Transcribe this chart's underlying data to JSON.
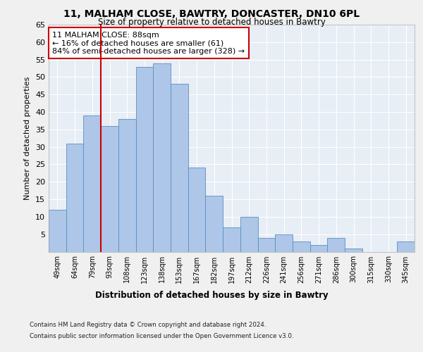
{
  "title_line1": "11, MALHAM CLOSE, BAWTRY, DONCASTER, DN10 6PL",
  "title_line2": "Size of property relative to detached houses in Bawtry",
  "xlabel": "Distribution of detached houses by size in Bawtry",
  "ylabel": "Number of detached properties",
  "categories": [
    "49sqm",
    "64sqm",
    "79sqm",
    "93sqm",
    "108sqm",
    "123sqm",
    "138sqm",
    "153sqm",
    "167sqm",
    "182sqm",
    "197sqm",
    "212sqm",
    "226sqm",
    "241sqm",
    "256sqm",
    "271sqm",
    "286sqm",
    "300sqm",
    "315sqm",
    "330sqm",
    "345sqm"
  ],
  "values": [
    12,
    31,
    39,
    36,
    38,
    53,
    54,
    48,
    24,
    16,
    7,
    10,
    4,
    5,
    3,
    2,
    4,
    1,
    0,
    0,
    3
  ],
  "bar_color": "#aec6e8",
  "bar_edge_color": "#5a8fc2",
  "bar_width": 1.0,
  "property_bin_index": 2,
  "vline_x": 2.5,
  "vline_color": "#cc0000",
  "annotation_text": "11 MALHAM CLOSE: 88sqm\n← 16% of detached houses are smaller (61)\n84% of semi-detached houses are larger (328) →",
  "annotation_box_color": "#ffffff",
  "annotation_box_edge_color": "#cc0000",
  "ylim": [
    0,
    65
  ],
  "yticks": [
    0,
    5,
    10,
    15,
    20,
    25,
    30,
    35,
    40,
    45,
    50,
    55,
    60,
    65
  ],
  "background_color": "#e8eef5",
  "grid_color": "#ffffff",
  "fig_background": "#f0f0f0",
  "footer_line1": "Contains HM Land Registry data © Crown copyright and database right 2024.",
  "footer_line2": "Contains public sector information licensed under the Open Government Licence v3.0."
}
